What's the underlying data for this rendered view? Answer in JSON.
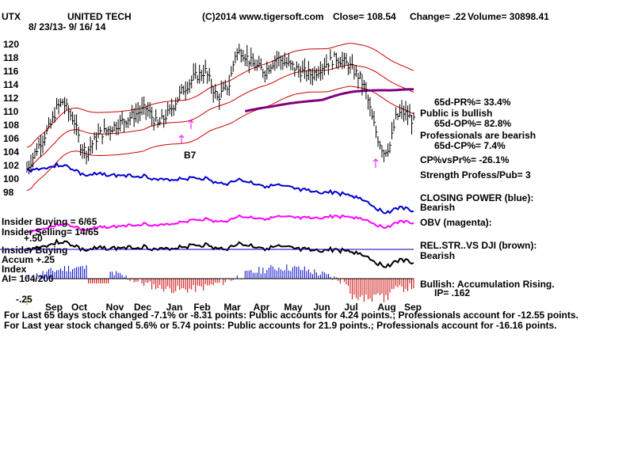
{
  "colors": {
    "price_bars": "#000000",
    "bands": "#cc0000",
    "ma65": "#800080",
    "closing_power": "#0000cc",
    "obv": "#ff00ff",
    "rel_strength": "#000000",
    "dotted": "#ff0000",
    "accum_pos": "#0000cc",
    "accum_neg": "#cc0000",
    "divider": "#0000aa"
  },
  "header": {
    "symbol": "UTX",
    "name": "UNITED TECH",
    "dates": "8/ 23/13- 9/ 16/ 14",
    "source": "(C)2014 www.tigersoft.com",
    "close": "Close=  108.54",
    "change": "Change= .22",
    "volume": "Volume=  30898.41"
  },
  "annotations": {
    "signal": "B7"
  },
  "right_panel": [
    "65d-PR%= 33.4%",
    "Public is bullish",
    "65d-OP%= 82.8%",
    "Professionals are bearish",
    "65d-CP%= 7.4%",
    "CP%vsPr%= -26.1%",
    "Strength Profess/Pub= 3",
    "CLOSING POWER (blue):",
    "Bearish",
    "OBV (magenta):",
    "REL.STR..VS DJI (brown):",
    "Bearish",
    "Bullish: Accumulation Rising.",
    "IP=  .162"
  ],
  "left_panel": {
    "insider_buying": "Insider Buying = 6/65",
    "insider_selling": "Insider Selling= 14/65",
    "fifty": "+.50",
    "insider_buying_2": "Insider Buying",
    "accum": "Accum  +.25",
    "index": "Index",
    "ai": "AI= 104/200",
    "minus25": "-.25"
  },
  "footer": [
    "For Last 65 days stock changed -7.1% or -8.31 points:  Public accounts for  4.24 points.;  Professionals account for -12.55 points.",
    "For Last year stock changed  5.6% or  5.74 points:  Public accounts for  21.9 points.;  Professionals account for -16.16 points."
  ],
  "chart_data": {
    "type": "line",
    "title": "UTX  UNITED TECH",
    "y_ticks": [
      120,
      118,
      116,
      114,
      112,
      110,
      108,
      106,
      104,
      102,
      100,
      98
    ],
    "ylim": [
      97,
      121
    ],
    "x_ticks": [
      "Sep",
      "Oct",
      "Nov",
      "Dec",
      "Jan",
      "Feb",
      "Mar",
      "Apr",
      "May",
      "Jun",
      "Jul",
      "Aug",
      "Sep"
    ],
    "price_close": [
      [
        0,
        101.5
      ],
      [
        2,
        105
      ],
      [
        4,
        108
      ],
      [
        5,
        110.5
      ],
      [
        6,
        111.5
      ],
      [
        7,
        110
      ],
      [
        8,
        108.5
      ],
      [
        9,
        105
      ],
      [
        10,
        104
      ],
      [
        12,
        106.5
      ],
      [
        14,
        107.5
      ],
      [
        16,
        108.5
      ],
      [
        18,
        109.5
      ],
      [
        20,
        110.5
      ],
      [
        22,
        108
      ],
      [
        24,
        110
      ],
      [
        26,
        113
      ],
      [
        28,
        115
      ],
      [
        30,
        116
      ],
      [
        32,
        112
      ],
      [
        34,
        114
      ],
      [
        35,
        118.5
      ],
      [
        36,
        119
      ],
      [
        38,
        117
      ],
      [
        40,
        116
      ],
      [
        42,
        118
      ],
      [
        44,
        117
      ],
      [
        46,
        116
      ],
      [
        48,
        115.5
      ],
      [
        50,
        117
      ],
      [
        52,
        118
      ],
      [
        54,
        117
      ],
      [
        56,
        115
      ],
      [
        57,
        113
      ],
      [
        58,
        109
      ],
      [
        59,
        106
      ],
      [
        60,
        104
      ],
      [
        61,
        105
      ],
      [
        62,
        109
      ],
      [
        63,
        110
      ],
      [
        64,
        109.5
      ],
      [
        65,
        108.5
      ]
    ],
    "series": [
      {
        "name": "CLOSING POWER (blue)",
        "trend": "falling"
      },
      {
        "name": "OBV (magenta)",
        "trend": "falling"
      },
      {
        "name": "REL.STR..VS DJI (brown)",
        "trend": "falling"
      }
    ]
  }
}
